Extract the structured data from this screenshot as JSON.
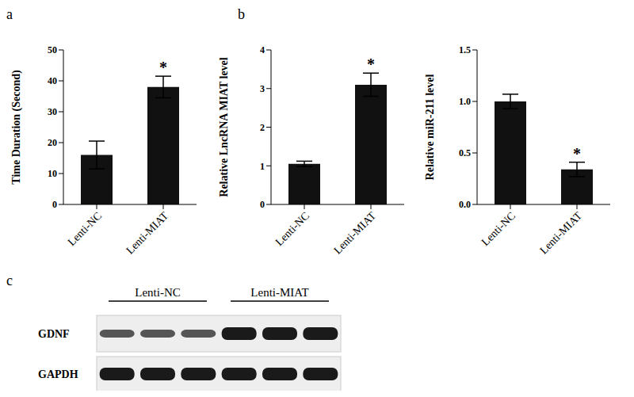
{
  "panel_labels": [
    "a",
    "b",
    "c"
  ],
  "chart_data": [
    {
      "type": "bar",
      "categories": [
        "Lenti-NC",
        "Lenti-MIAT"
      ],
      "values": [
        16,
        38
      ],
      "errors": [
        4.5,
        3.5
      ],
      "significance": [
        null,
        "*"
      ],
      "y_label": "Time Duration (Second)",
      "ylim": [
        0,
        50
      ],
      "yticks": [
        0,
        10,
        20,
        30,
        40,
        50
      ],
      "color": "#111111"
    },
    {
      "type": "bar",
      "categories": [
        "Lenti-NC",
        "Lenti-MIAT"
      ],
      "values": [
        1.05,
        3.1
      ],
      "errors": [
        0.07,
        0.3
      ],
      "significance": [
        null,
        "*"
      ],
      "y_label": "Relative LncRNA MIAT level",
      "ylim": [
        0,
        4
      ],
      "yticks": [
        0,
        1,
        2,
        3,
        4
      ],
      "color": "#111111"
    },
    {
      "type": "bar",
      "categories": [
        "Lenti-NC",
        "Lenti-MIAT"
      ],
      "values": [
        1.0,
        0.34
      ],
      "errors": [
        0.07,
        0.07
      ],
      "significance": [
        null,
        "*"
      ],
      "y_label": "Relative miR-211 level",
      "ylim": [
        0,
        1.5
      ],
      "yticks": [
        {
          "value": 0,
          "label": "0.0"
        },
        0.5,
        {
          "value": 1,
          "label": "1.0"
        },
        1.5
      ],
      "color": "#111111"
    }
  ],
  "blot": {
    "groups": [
      "Lenti-NC",
      "Lenti-MIAT"
    ],
    "lanes_per_group": 3,
    "rows": [
      "GDNF",
      "GAPDH"
    ]
  }
}
